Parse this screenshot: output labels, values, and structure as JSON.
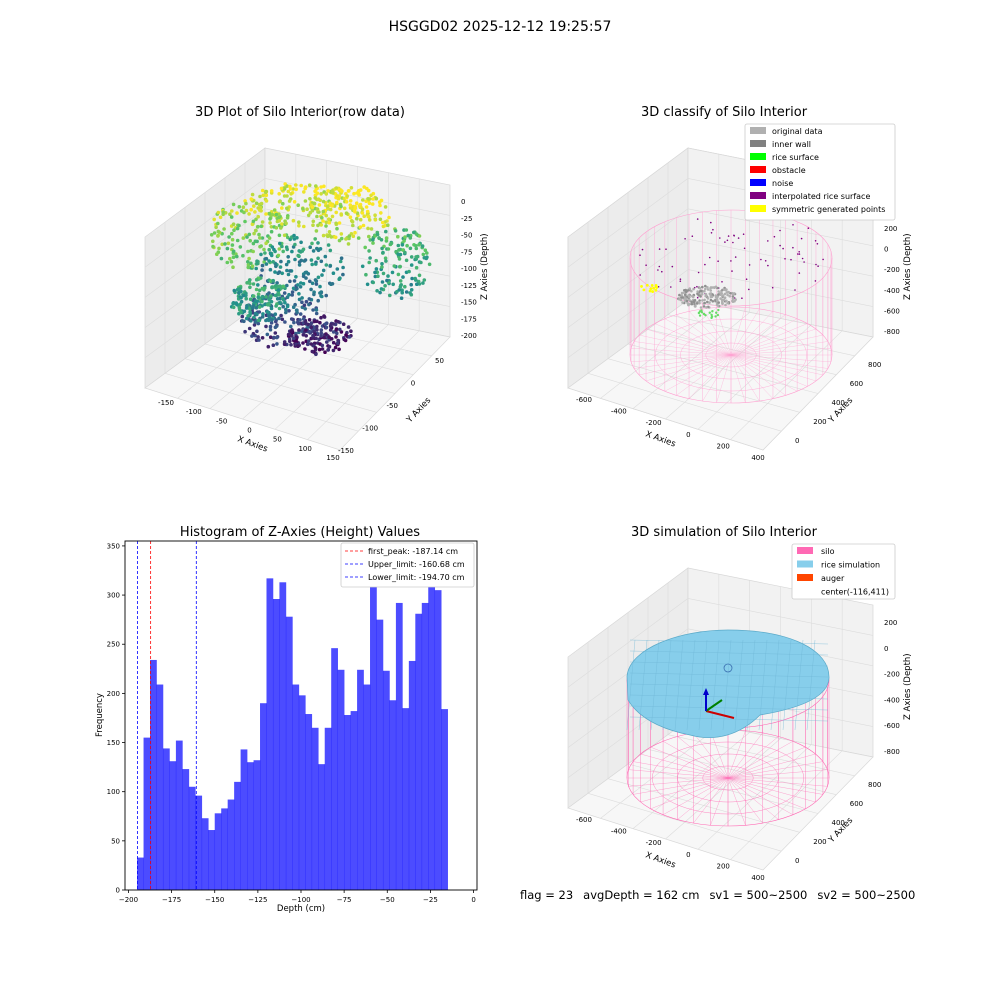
{
  "figure_title": "HSGGD02 2025-12-12 19:25:57",
  "panels": {
    "raw": {
      "title": "3D Plot of Silo Interior(row data)",
      "xlabel": "X Axies",
      "ylabel": "Y Axies",
      "zlabel": "Z Axies (Depth)",
      "xticks": [
        "-150",
        "-100",
        "-50",
        "0",
        "50",
        "100",
        "150"
      ],
      "yticks": [
        "50",
        "0",
        "-50",
        "-100",
        "-150"
      ],
      "zticks": [
        "0",
        "-25",
        "-50",
        "-75",
        "-100",
        "-125",
        "-150",
        "-175",
        "-200"
      ]
    },
    "classify": {
      "title": "3D classify of Silo Interior",
      "xlabel": "X Axies",
      "ylabel": "Y Axies",
      "zlabel": "Z Axies (Depth)",
      "xticks": [
        "-600",
        "-400",
        "-200",
        "0",
        "200",
        "400"
      ],
      "yticks": [
        "800",
        "600",
        "400",
        "200",
        "0"
      ],
      "zticks": [
        "200",
        "0",
        "-200",
        "-400",
        "-600",
        "-800"
      ],
      "legend": [
        {
          "label": "original data",
          "color": "#b0b0b0"
        },
        {
          "label": "inner wall",
          "color": "#808080"
        },
        {
          "label": "rice surface",
          "color": "#00ff00"
        },
        {
          "label": "obstacle",
          "color": "#ff0000"
        },
        {
          "label": "noise",
          "color": "#0000ff"
        },
        {
          "label": "interpolated rice surface",
          "color": "#800080"
        },
        {
          "label": "symmetric generated points",
          "color": "#ffff00"
        }
      ]
    },
    "simulation": {
      "title": "3D simulation of Silo Interior",
      "xlabel": "X Axies",
      "ylabel": "Y Axies",
      "zlabel": "Z Axies (Depth)",
      "xticks": [
        "-600",
        "-400",
        "-200",
        "0",
        "200",
        "400"
      ],
      "yticks": [
        "800",
        "600",
        "400",
        "200",
        "0"
      ],
      "zticks": [
        "200",
        "0",
        "-200",
        "-400",
        "-600",
        "-800"
      ],
      "legend": [
        {
          "label": "silo",
          "color": "#ff69b4"
        },
        {
          "label": "rice simulation",
          "color": "#87ceeb"
        },
        {
          "label": "auger",
          "color": "#ff4500"
        },
        {
          "label": "center(-116,411)",
          "color": ""
        }
      ]
    }
  },
  "chart_data": {
    "type": "bar",
    "title": "Histogram of Z-Axies (Height) Values",
    "xlabel": "Depth (cm)",
    "ylabel": "Frequency",
    "xlim": [
      -202,
      2
    ],
    "ylim": [
      0,
      355
    ],
    "xticks": [
      -200,
      -175,
      -150,
      -125,
      -100,
      -75,
      -50,
      -25,
      0
    ],
    "yticks": [
      0,
      50,
      100,
      150,
      200,
      250,
      300,
      350
    ],
    "bin_start": -195,
    "bin_width": 3.75,
    "values": [
      33,
      155,
      234,
      209,
      144,
      131,
      152,
      123,
      105,
      96,
      73,
      61,
      78,
      83,
      92,
      110,
      143,
      130,
      132,
      190,
      317,
      296,
      313,
      278,
      209,
      198,
      179,
      165,
      128,
      165,
      246,
      224,
      178,
      182,
      224,
      209,
      310,
      275,
      223,
      193,
      292,
      185,
      233,
      281,
      292,
      337,
      305,
      184
    ],
    "bar_color": "#0000ff",
    "lines": [
      {
        "label": "first_peak: -187.14 cm",
        "x": -187.14,
        "color": "#ff0000"
      },
      {
        "label": "Upper_limit: -160.68 cm",
        "x": -160.68,
        "color": "#0000ff"
      },
      {
        "label": "Lower_limit: -194.70 cm",
        "x": -194.7,
        "color": "#0000ff"
      }
    ],
    "legend_position": "top-right"
  },
  "footer": {
    "flag": "flag = 23",
    "avg": "avgDepth = 162 cm",
    "sv1": "sv1 = 500~2500",
    "sv2": "sv2 = 500~2500"
  }
}
